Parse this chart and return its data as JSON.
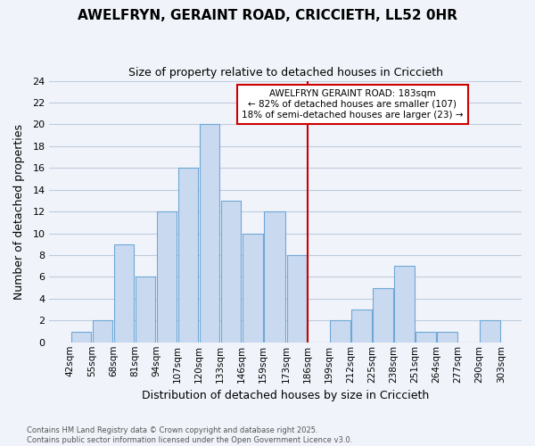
{
  "title": "AWELFRYN, GERAINT ROAD, CRICCIETH, LL52 0HR",
  "subtitle": "Size of property relative to detached houses in Criccieth",
  "xlabel": "Distribution of detached houses by size in Criccieth",
  "ylabel": "Number of detached properties",
  "bin_labels": [
    "42sqm",
    "55sqm",
    "68sqm",
    "81sqm",
    "94sqm",
    "107sqm",
    "120sqm",
    "133sqm",
    "146sqm",
    "159sqm",
    "173sqm",
    "186sqm",
    "199sqm",
    "212sqm",
    "225sqm",
    "238sqm",
    "251sqm",
    "264sqm",
    "277sqm",
    "290sqm",
    "303sqm"
  ],
  "bin_edges": [
    42,
    55,
    68,
    81,
    94,
    107,
    120,
    133,
    146,
    159,
    173,
    186,
    199,
    212,
    225,
    238,
    251,
    264,
    277,
    290,
    303
  ],
  "bar_heights": [
    1,
    2,
    9,
    6,
    12,
    16,
    20,
    13,
    10,
    12,
    8,
    0,
    2,
    3,
    5,
    7,
    1,
    1,
    0,
    2
  ],
  "bar_color": "#c9d9f0",
  "bar_edge_color": "#6fa8d6",
  "grid_color": "#c0ccdd",
  "vline_x": 186,
  "vline_color": "#cc0000",
  "ylim": [
    0,
    24
  ],
  "yticks": [
    0,
    2,
    4,
    6,
    8,
    10,
    12,
    14,
    16,
    18,
    20,
    22,
    24
  ],
  "annotation_title": "AWELFRYN GERAINT ROAD: 183sqm",
  "annotation_line1": "← 82% of detached houses are smaller (107)",
  "annotation_line2": "18% of semi-detached houses are larger (23) →",
  "footer_line1": "Contains HM Land Registry data © Crown copyright and database right 2025.",
  "footer_line2": "Contains public sector information licensed under the Open Government Licence v3.0.",
  "bg_color": "#f0f4fa"
}
